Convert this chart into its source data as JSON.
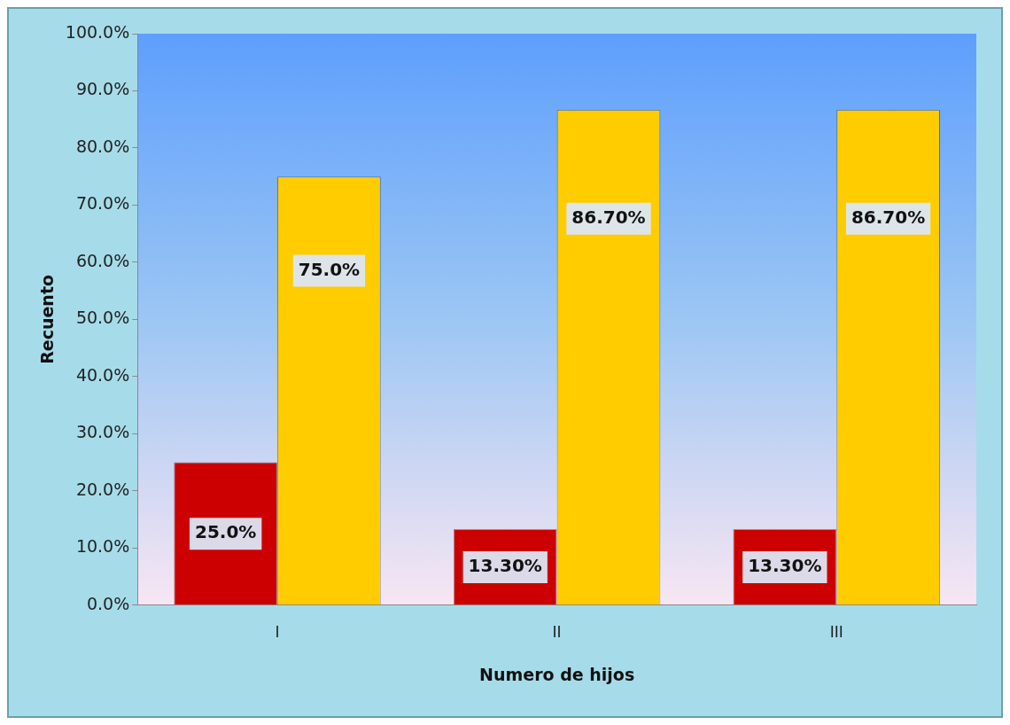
{
  "chart_data": {
    "type": "bar",
    "xlabel": "Numero de hijos",
    "ylabel": "Recuento",
    "categories": [
      "I",
      "II",
      "III"
    ],
    "series": [
      {
        "color": "#cc0000",
        "values": [
          25,
          13.3,
          13.3
        ],
        "value_labels": [
          "25.0%",
          "13.30%",
          "13.30%"
        ]
      },
      {
        "color": "#ffcc00",
        "values": [
          75,
          86.7,
          86.7
        ],
        "value_labels": [
          "75.0%",
          "86.70%",
          "86.70%"
        ]
      }
    ],
    "ylim": [
      0,
      100
    ],
    "yticks": [
      {
        "value": 0,
        "label": "0.0%"
      },
      {
        "value": 10,
        "label": "10.0%"
      },
      {
        "value": 20,
        "label": "20.0%"
      },
      {
        "value": 30,
        "label": "30.0%"
      },
      {
        "value": 40,
        "label": "40.0%"
      },
      {
        "value": 50,
        "label": "50.0%"
      },
      {
        "value": 60,
        "label": "60.0%"
      },
      {
        "value": 70,
        "label": "70.0%"
      },
      {
        "value": 80,
        "label": "80.0%"
      },
      {
        "value": 90,
        "label": "90.0%"
      },
      {
        "value": 100,
        "label": "100.0%"
      }
    ],
    "grid": false,
    "legend": false
  }
}
